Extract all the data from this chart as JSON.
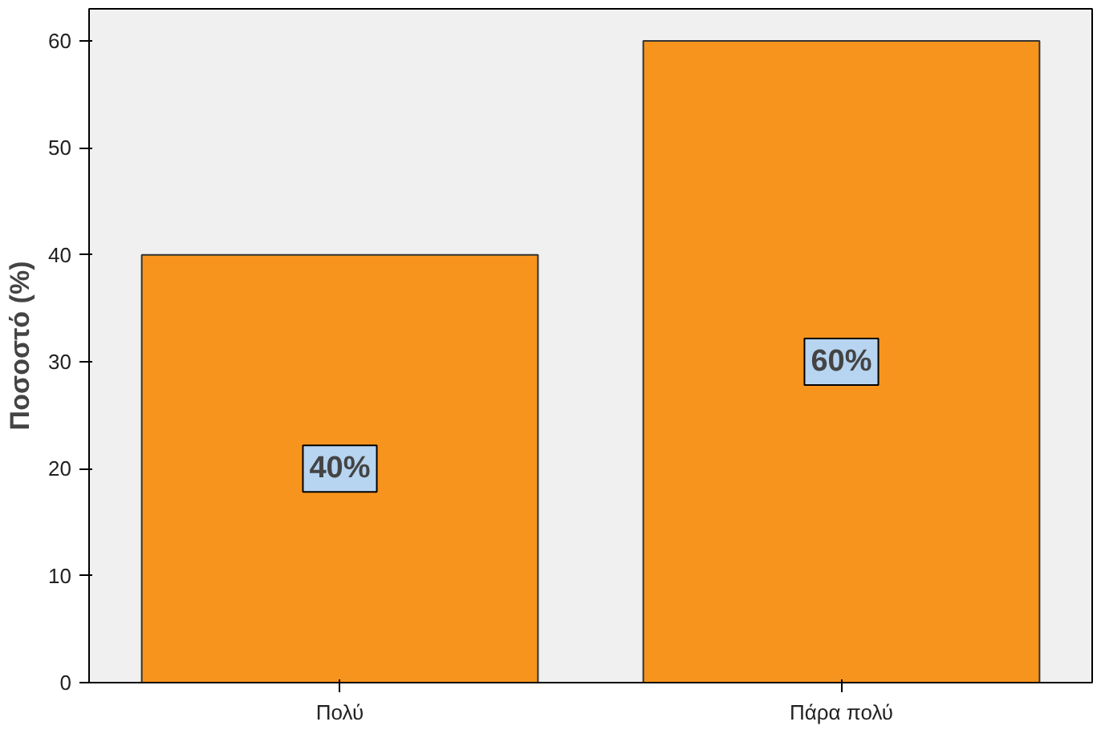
{
  "chart_data": {
    "type": "bar",
    "ylabel": "Ποσοστό (%)",
    "categories": [
      "Πολύ",
      "Πάρα πολύ"
    ],
    "values": [
      40,
      60
    ],
    "value_labels": [
      "40%",
      "60%"
    ],
    "color": "#f7941d",
    "ylim": [
      0,
      63
    ],
    "yticks": [
      0,
      10,
      20,
      30,
      40,
      50,
      60
    ],
    "grid": false
  }
}
